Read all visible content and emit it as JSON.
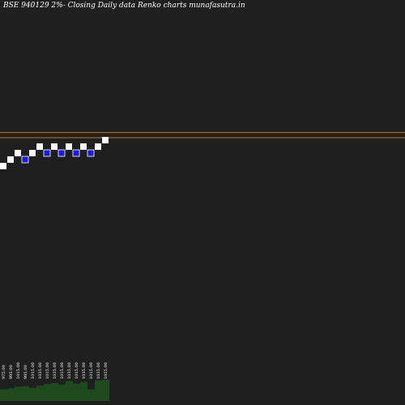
{
  "chart_data": {
    "type": "renko",
    "title": "BSE 940129 2%-  Closing Daily data  Renko  charts munafasutra.in",
    "colors": {
      "background": "#1f1f1f",
      "up_brick": "#ffffff",
      "down_brick": "#1c1cd6",
      "reference_line": "#c8781e",
      "volume_bar": "#1e4a1e",
      "label": "#ffffff"
    },
    "reference_lines": [
      1071.0,
      1055.0
    ],
    "bricks": [
      {
        "direction": "up",
        "value": 975
      },
      {
        "direction": "up",
        "value": 995
      },
      {
        "direction": "up",
        "value": 1015
      },
      {
        "direction": "down",
        "value": 995
      },
      {
        "direction": "up",
        "value": 1015
      },
      {
        "direction": "up",
        "value": 1035
      },
      {
        "direction": "down",
        "value": 1015
      },
      {
        "direction": "up",
        "value": 1035
      },
      {
        "direction": "down",
        "value": 1015
      },
      {
        "direction": "up",
        "value": 1035
      },
      {
        "direction": "down",
        "value": 1015
      },
      {
        "direction": "up",
        "value": 1035
      },
      {
        "direction": "down",
        "value": 1015
      },
      {
        "direction": "up",
        "value": 1035
      },
      {
        "direction": "up",
        "value": 1055
      }
    ],
    "brick_labels": [
      "975.00",
      "995.00",
      "1015.00",
      "995.00",
      "1015.00",
      "1035.00",
      "1015.00",
      "1035.00",
      "1015.00",
      "1035.00",
      "1015.00",
      "1035.00",
      "1015.00",
      "1035.00",
      "1055.00"
    ],
    "volume": [
      0.55,
      0.6,
      0.68,
      0.7,
      0.62,
      0.72,
      0.8,
      0.85,
      0.78,
      0.95,
      0.82,
      0.9,
      0.55,
      0.98,
      1.0
    ]
  }
}
